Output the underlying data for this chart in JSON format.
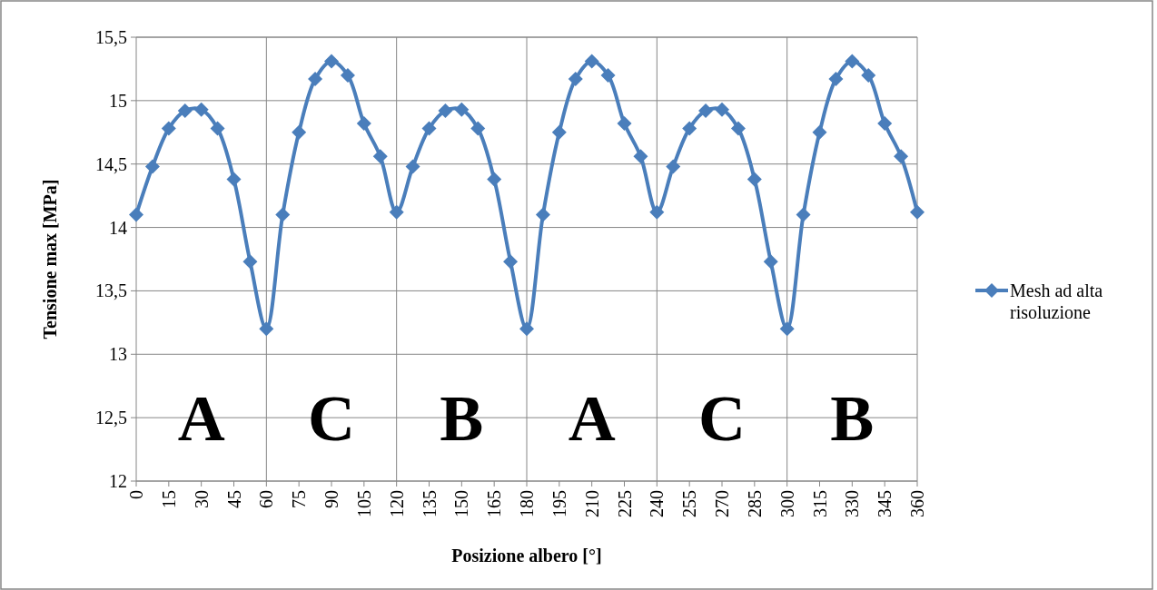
{
  "chart_data": {
    "type": "line",
    "xlabel": "Posizione albero [°]",
    "ylabel": "Tensione max [MPa]",
    "x": [
      0,
      7.5,
      15,
      22.5,
      30,
      37.5,
      45,
      52.5,
      60,
      67.5,
      75,
      82.5,
      90,
      97.5,
      105,
      112.5,
      120,
      127.5,
      135,
      142.5,
      150,
      157.5,
      165,
      172.5,
      180,
      187.5,
      195,
      202.5,
      210,
      217.5,
      225,
      232.5,
      240,
      247.5,
      255,
      262.5,
      270,
      277.5,
      285,
      292.5,
      300,
      307.5,
      315,
      322.5,
      330,
      337.5,
      345,
      352.5,
      360
    ],
    "series": [
      {
        "name": "Mesh ad alta risoluzione",
        "color": "#4a7ebb",
        "values": [
          14.1,
          14.48,
          14.78,
          14.92,
          14.93,
          14.78,
          14.38,
          13.73,
          13.2,
          14.1,
          14.75,
          15.17,
          15.31,
          15.2,
          14.82,
          14.56,
          14.12,
          14.48,
          14.78,
          14.92,
          14.93,
          14.78,
          14.38,
          13.73,
          13.2,
          14.1,
          14.75,
          15.17,
          15.31,
          15.2,
          14.82,
          14.56,
          14.12,
          14.48,
          14.78,
          14.92,
          14.93,
          14.78,
          14.38,
          13.73,
          13.2,
          14.1,
          14.75,
          15.17,
          15.31,
          15.2,
          14.82,
          14.56,
          14.12
        ]
      }
    ],
    "xlim": [
      0,
      360
    ],
    "xticks": [
      0,
      15,
      30,
      45,
      60,
      75,
      90,
      105,
      120,
      135,
      150,
      165,
      180,
      195,
      210,
      225,
      240,
      255,
      270,
      285,
      300,
      315,
      330,
      345,
      360
    ],
    "ylim": [
      12,
      15.5
    ],
    "yticks": [
      12,
      {
        "value": 12.5,
        "label": "12,5"
      },
      13,
      {
        "value": 13.5,
        "label": "13,5"
      },
      14,
      {
        "value": 14.5,
        "label": "14,5"
      },
      15,
      {
        "value": 15.5,
        "label": "15,5"
      }
    ],
    "grid": "y",
    "legend": "right",
    "marker": "diamond",
    "line_style": "solid",
    "ref_lines": [
      {
        "axis": "x",
        "value": 60,
        "color": "#868686"
      },
      {
        "axis": "x",
        "value": 120,
        "color": "#868686"
      },
      {
        "axis": "x",
        "value": 180,
        "color": "#868686"
      },
      {
        "axis": "x",
        "value": 240,
        "color": "#868686"
      },
      {
        "axis": "x",
        "value": 300,
        "color": "#868686"
      }
    ],
    "annotations": [
      "A",
      "C",
      "B",
      "A",
      "C",
      "B"
    ]
  }
}
